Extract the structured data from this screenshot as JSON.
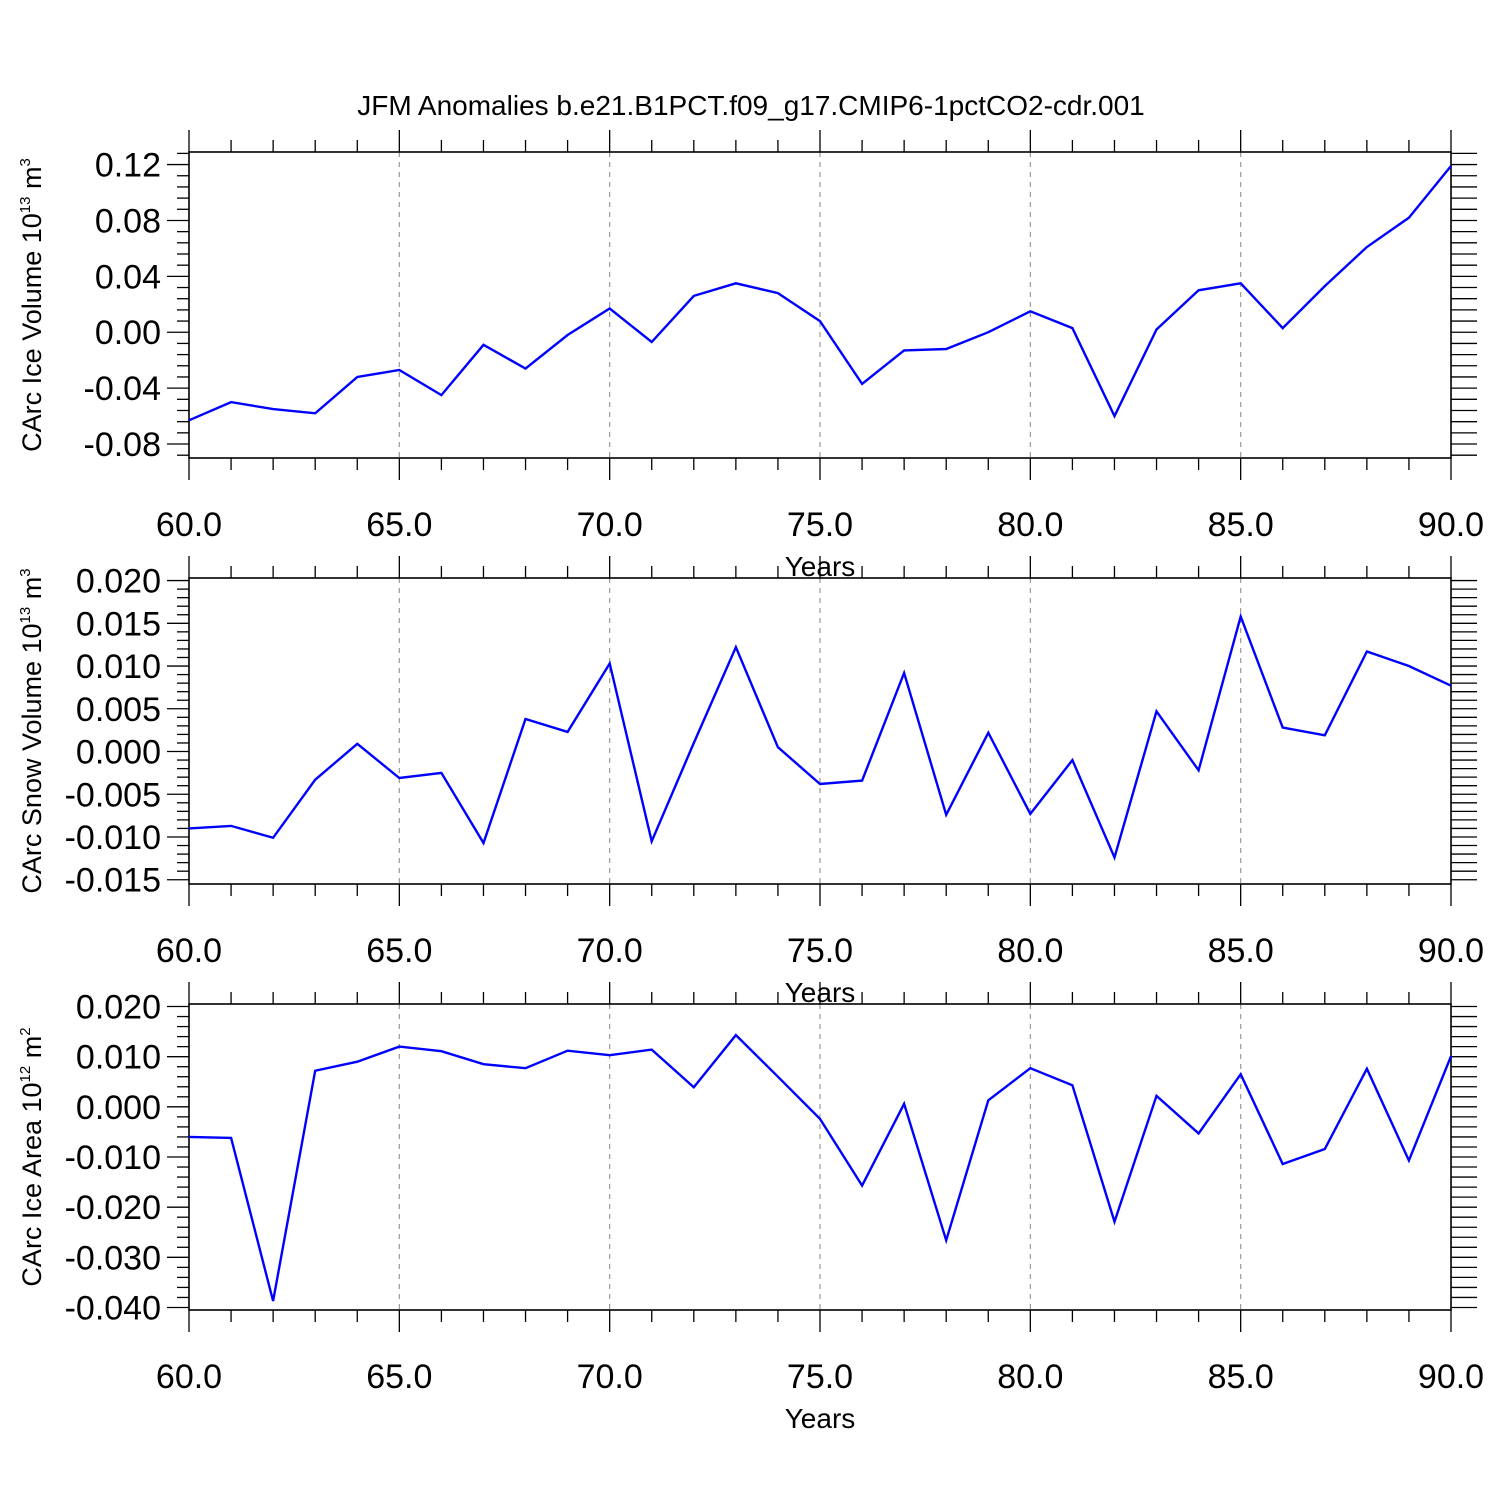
{
  "title": "JFM Anomalies b.e21.B1PCT.f09_g17.CMIP6-1pctCO2-cdr.001",
  "colors": {
    "line": "#0000ff",
    "axes": "#000000",
    "grid": "#9a9a9a"
  },
  "chart_data": [
    {
      "type": "line",
      "xlabel": "Years",
      "ylabel": "CArc Ice Volume 10",
      "ylabel_exponent": "13",
      "ylabel_unit": "m",
      "ylabel_unit_exponent": "3",
      "xlim": [
        60,
        90
      ],
      "ylim": [
        -0.09,
        0.129
      ],
      "x_ticks": [
        "60.0",
        "65.0",
        "70.0",
        "75.0",
        "80.0",
        "85.0",
        "90.0"
      ],
      "y_ticks": [
        "0.12",
        "0.08",
        "0.04",
        "0.00",
        "-0.04",
        "-0.08"
      ],
      "grid": "vertical dashed at major x ticks",
      "x": [
        60,
        61,
        62,
        63,
        64,
        65,
        66,
        67,
        68,
        69,
        70,
        71,
        72,
        73,
        74,
        75,
        76,
        77,
        78,
        79,
        80,
        81,
        82,
        83,
        84,
        85,
        86,
        87,
        88,
        89,
        90
      ],
      "values": [
        -0.063,
        -0.05,
        -0.055,
        -0.058,
        -0.032,
        -0.027,
        -0.045,
        -0.009,
        -0.026,
        -0.002,
        0.017,
        -0.007,
        0.026,
        0.035,
        0.028,
        0.008,
        -0.037,
        -0.013,
        -0.012,
        0.0,
        0.015,
        0.003,
        -0.06,
        0.002,
        0.03,
        0.035,
        0.003,
        0.033,
        0.061,
        0.082,
        0.119
      ]
    },
    {
      "type": "line",
      "xlabel": "Years",
      "ylabel": "CArc Snow Volume 10",
      "ylabel_exponent": "13",
      "ylabel_unit": "m",
      "ylabel_unit_exponent": "3",
      "xlim": [
        60,
        90
      ],
      "ylim": [
        -0.0155,
        0.0203
      ],
      "x_ticks": [
        "60.0",
        "65.0",
        "70.0",
        "75.0",
        "80.0",
        "85.0",
        "90.0"
      ],
      "y_ticks": [
        "0.020",
        "0.015",
        "0.010",
        "0.005",
        "0.000",
        "-0.005",
        "-0.010",
        "-0.015"
      ],
      "grid": "vertical dashed at major x ticks",
      "x": [
        60,
        61,
        62,
        63,
        64,
        65,
        66,
        67,
        68,
        69,
        70,
        71,
        72,
        73,
        74,
        75,
        76,
        77,
        78,
        79,
        80,
        81,
        82,
        83,
        84,
        85,
        86,
        87,
        88,
        89,
        90
      ],
      "values": [
        -0.009,
        -0.0087,
        -0.0101,
        -0.0033,
        0.0009,
        -0.0031,
        -0.0025,
        -0.0107,
        0.0038,
        0.0023,
        0.0103,
        -0.0105,
        0.001,
        0.0122,
        0.0005,
        -0.0038,
        -0.0034,
        0.0092,
        -0.0074,
        0.0022,
        -0.0073,
        -0.001,
        -0.0124,
        0.0047,
        -0.0022,
        0.0158,
        0.0028,
        0.0019,
        0.0117,
        0.01,
        0.0077
      ]
    },
    {
      "type": "line",
      "xlabel": "Years",
      "ylabel": "CArc Ice Area 10",
      "ylabel_exponent": "12",
      "ylabel_unit": "m",
      "ylabel_unit_exponent": "2",
      "xlim": [
        60,
        90
      ],
      "ylim": [
        -0.0405,
        0.0205
      ],
      "x_ticks": [
        "60.0",
        "65.0",
        "70.0",
        "75.0",
        "80.0",
        "85.0",
        "90.0"
      ],
      "y_ticks": [
        "0.020",
        "0.010",
        "0.000",
        "-0.010",
        "-0.020",
        "-0.030",
        "-0.040"
      ],
      "grid": "vertical dashed at major x ticks",
      "x": [
        60,
        61,
        62,
        63,
        64,
        65,
        66,
        67,
        68,
        69,
        70,
        71,
        72,
        73,
        74,
        75,
        76,
        77,
        78,
        79,
        80,
        81,
        82,
        83,
        84,
        85,
        86,
        87,
        88,
        89,
        90
      ],
      "values": [
        -0.006,
        -0.0062,
        -0.0387,
        0.0072,
        0.009,
        0.012,
        0.0111,
        0.0085,
        0.0077,
        0.0112,
        0.0103,
        0.0114,
        0.0039,
        0.0143,
        0.006,
        -0.0024,
        -0.0157,
        0.0006,
        -0.0266,
        0.0013,
        0.0077,
        0.0043,
        -0.0229,
        0.0022,
        -0.0053,
        0.0065,
        -0.0114,
        -0.0084,
        0.0076,
        -0.0107,
        0.0101
      ]
    }
  ]
}
